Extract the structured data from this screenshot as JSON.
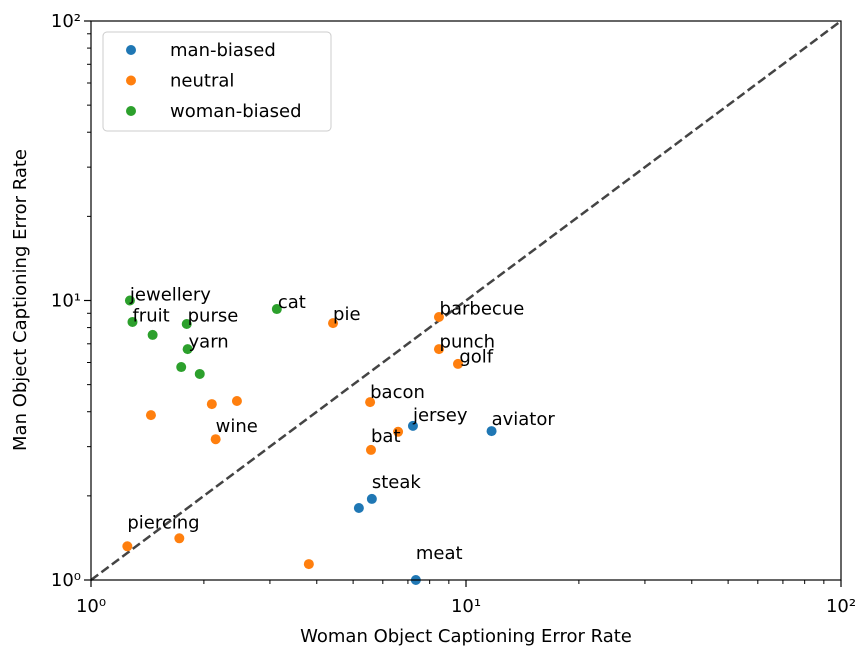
{
  "chart_data": {
    "type": "scatter",
    "xlabel": "Woman Object Captioning Error Rate",
    "ylabel": "Man Object Captioning Error Rate",
    "xscale": "log",
    "yscale": "log",
    "xlim": [
      1,
      100
    ],
    "ylim": [
      1,
      100
    ],
    "xticks": [
      {
        "value": 1,
        "label": "10⁰"
      },
      {
        "value": 10,
        "label": "10¹"
      },
      {
        "value": 100,
        "label": "10²"
      }
    ],
    "yticks": [
      {
        "value": 1,
        "label": "10⁰"
      },
      {
        "value": 10,
        "label": "10¹"
      },
      {
        "value": 100,
        "label": "10²"
      }
    ],
    "legend": "upper left",
    "series": [
      {
        "name": "man-biased",
        "color": "#1f77b4",
        "x": [
          11.7,
          7.22,
          5.61,
          5.18,
          7.35
        ],
        "values": [
          3.41,
          3.56,
          1.95,
          1.81,
          1.0
        ]
      },
      {
        "name": "neutral",
        "color": "#ff7f0e",
        "x": [
          4.42,
          8.47,
          8.47,
          9.52,
          5.55,
          6.59,
          5.58,
          2.45,
          2.1,
          2.15,
          1.445,
          1.72,
          1.25,
          3.81
        ],
        "values": [
          8.3,
          8.73,
          6.7,
          5.93,
          4.33,
          3.39,
          2.92,
          4.37,
          4.26,
          3.19,
          3.89,
          1.41,
          1.32,
          1.14
        ]
      },
      {
        "name": "woman-biased",
        "color": "#2ca02c",
        "x": [
          1.27,
          1.29,
          1.46,
          1.8,
          1.81,
          1.74,
          1.95,
          3.13
        ],
        "values": [
          10.0,
          8.38,
          7.53,
          8.24,
          6.7,
          5.78,
          5.46,
          9.32
        ]
      }
    ],
    "annotations": [
      {
        "text": "jewellery",
        "x": 1.27,
        "y": 10.0
      },
      {
        "text": "fruit",
        "x": 1.29,
        "y": 8.4
      },
      {
        "text": "purse",
        "x": 1.81,
        "y": 8.4
      },
      {
        "text": "yarn",
        "x": 1.82,
        "y": 6.8
      },
      {
        "text": "cat",
        "x": 3.15,
        "y": 9.4
      },
      {
        "text": "pie",
        "x": 4.42,
        "y": 8.5
      },
      {
        "text": "barbecue",
        "x": 8.5,
        "y": 8.9
      },
      {
        "text": "punch",
        "x": 8.5,
        "y": 6.8
      },
      {
        "text": "golf",
        "x": 9.6,
        "y": 6.0
      },
      {
        "text": "bacon",
        "x": 5.55,
        "y": 4.48
      },
      {
        "text": "jersey",
        "x": 7.22,
        "y": 3.7
      },
      {
        "text": "aviator",
        "x": 11.7,
        "y": 3.58
      },
      {
        "text": "bat",
        "x": 5.58,
        "y": 3.12
      },
      {
        "text": "wine",
        "x": 2.15,
        "y": 3.38
      },
      {
        "text": "steak",
        "x": 5.61,
        "y": 2.13
      },
      {
        "text": "piercing",
        "x": 1.25,
        "y": 1.53
      },
      {
        "text": "meat",
        "x": 7.35,
        "y": 1.19
      }
    ]
  }
}
